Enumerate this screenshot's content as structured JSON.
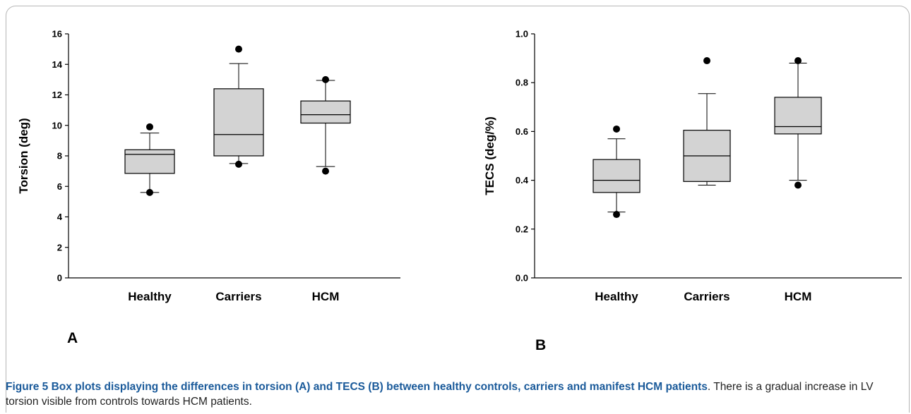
{
  "chart_data": [
    {
      "type": "box",
      "panel": "A",
      "ylabel": "Torsion (deg)",
      "ylim": [
        0,
        16
      ],
      "yticks": [
        0,
        2,
        4,
        6,
        8,
        10,
        12,
        14,
        16
      ],
      "categories": [
        "Healthy",
        "Carriers",
        "HCM"
      ],
      "boxes": [
        {
          "category": "Healthy",
          "whisker_low": 5.6,
          "q1": 6.85,
          "median": 8.1,
          "q3": 8.4,
          "whisker_high": 9.5,
          "outliers": [
            9.9,
            5.6
          ]
        },
        {
          "category": "Carriers",
          "whisker_low": 7.5,
          "q1": 8.0,
          "median": 9.4,
          "q3": 12.4,
          "whisker_high": 14.05,
          "outliers": [
            15.0,
            7.45
          ]
        },
        {
          "category": "HCM",
          "whisker_low": 7.3,
          "q1": 10.15,
          "median": 10.7,
          "q3": 11.6,
          "whisker_high": 12.95,
          "outliers": [
            13.0,
            7.0
          ]
        }
      ]
    },
    {
      "type": "box",
      "panel": "B",
      "ylabel": "TECS (deg/%)",
      "ylim": [
        0.0,
        1.0
      ],
      "yticks": [
        0.0,
        0.2,
        0.4,
        0.6,
        0.8,
        1.0
      ],
      "categories": [
        "Healthy",
        "Carriers",
        "HCM"
      ],
      "boxes": [
        {
          "category": "Healthy",
          "whisker_low": 0.27,
          "q1": 0.35,
          "median": 0.4,
          "q3": 0.485,
          "whisker_high": 0.57,
          "outliers": [
            0.61,
            0.26
          ]
        },
        {
          "category": "Carriers",
          "whisker_low": 0.38,
          "q1": 0.395,
          "median": 0.5,
          "q3": 0.605,
          "whisker_high": 0.755,
          "outliers": [
            0.89
          ]
        },
        {
          "category": "HCM",
          "whisker_low": 0.4,
          "q1": 0.59,
          "median": 0.62,
          "q3": 0.74,
          "whisker_high": 0.88,
          "outliers": [
            0.89,
            0.38
          ]
        }
      ]
    }
  ],
  "caption": {
    "title": "Figure 5 Box plots displaying the differences in torsion (A) and TECS (B) between healthy controls, carriers and manifest HCM patients",
    "text": ". There is a gradual increase in LV torsion visible from controls towards HCM patients."
  },
  "colors": {
    "box_fill": "#d3d3d3",
    "stroke": "#000000",
    "caption_title": "#1a5a9a"
  }
}
